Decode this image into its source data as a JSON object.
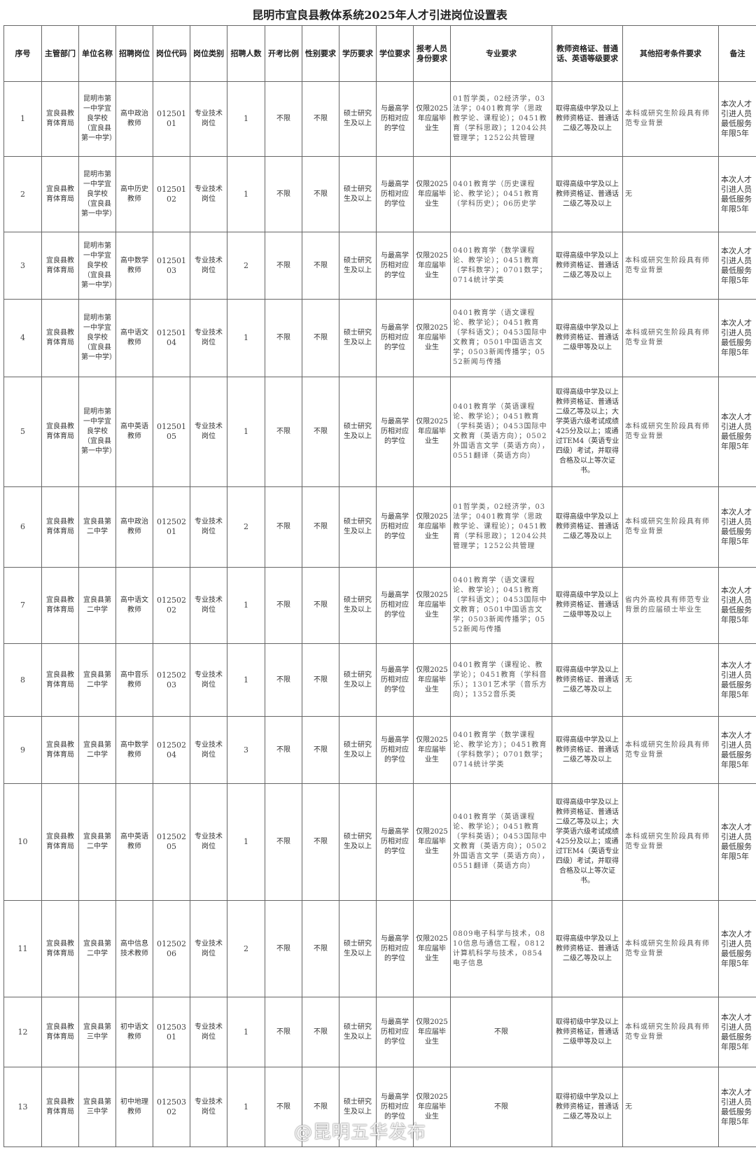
{
  "title": "昆明市宜良县教体系统2025年人才引进岗位设置表",
  "headers": [
    "序号",
    "主管部门",
    "单位名称",
    "招聘岗位",
    "岗位代码",
    "岗位类别",
    "招聘人数",
    "开考比例",
    "性别要求",
    "学历要求",
    "学位要求",
    "报考人员身份要求",
    "专业要求",
    "教师资格证、普通话、英语等级要求",
    "其他招考条件要求",
    "备注"
  ],
  "rows": [
    [
      "1",
      "宜良县教育体育局",
      "昆明市第一中学宜良学校（宜良县第一中学）",
      "高中政治教师",
      "01250101",
      "专业技术岗位",
      "1",
      "不限",
      "不限",
      "硕士研究生及以上",
      "与最高学历相对应的学位",
      "仅限2025年应届毕业生",
      "01哲学类，02经济学，03法学；0401教育学（思政教学论、课程论）；0451教育（学科思政）；1204公共管理学；1252公共管理",
      "取得高级中学及以上教师资格证、普通话二级乙等及以上",
      "本科或研究生阶段具有师范专业背景",
      "本次人才引进人员最低服务年限5年"
    ],
    [
      "2",
      "宜良县教育体育局",
      "昆明市第一中学宜良学校（宜良县第一中学）",
      "高中历史教师",
      "01250102",
      "专业技术岗位",
      "1",
      "不限",
      "不限",
      "硕士研究生及以上",
      "与最高学历相对应的学位",
      "仅限2025年应届毕业生",
      "0401教育学（历史课程论、教学论）；0451教育（学科历史）；06历史学",
      "取得高级中学及以上教师资格证、普通话二级乙等及以上",
      "无",
      "本次人才引进人员最低服务年限5年"
    ],
    [
      "3",
      "宜良县教育体育局",
      "昆明市第一中学宜良学校（宜良县第一中学）",
      "高中数学教师",
      "01250103",
      "专业技术岗位",
      "2",
      "不限",
      "不限",
      "硕士研究生及以上",
      "与最高学历相对应的学位",
      "仅限2025年应届毕业生",
      "0401教育学（数学课程论、教学论）；0451教育（学科数学）；0701数学；0714统计学类",
      "取得高级中学及以上教师资格证、普通话二级乙等及以上",
      "本科或研究生阶段具有师范专业背景",
      "本次人才引进人员最低服务年限5年"
    ],
    [
      "4",
      "宜良县教育体育局",
      "昆明市第一中学宜良学校（宜良县第一中学）",
      "高中语文教师",
      "01250104",
      "专业技术岗位",
      "1",
      "不限",
      "不限",
      "硕士研究生及以上",
      "与最高学历相对应的学位",
      "仅限2025年应届毕业生",
      "0401教育学（语文课程论、教学论）；0451教育（学科语文）；0453国际中文教育；0501中国语言文学；0503新闻传播学；0552新闻与传播",
      "取得高级中学及以上教师资格证、普通话二级甲等及以上",
      "本科或研究生阶段具有师范专业背景",
      "本次人才引进人员最低服务年限5年"
    ],
    [
      "5",
      "宜良县教育体育局",
      "昆明市第一中学宜良学校（宜良县第一中学）",
      "高中英语教师",
      "01250105",
      "专业技术岗位",
      "1",
      "不限",
      "不限",
      "硕士研究生及以上",
      "与最高学历相对应的学位",
      "仅限2025年应届毕业生",
      "0401教育学（英语课程论、教学论）；0451教育（学科英语）；0453国际中文教育（英语方向）；0502外国语言文学（英语方向），0551翻译（英语方向）",
      "取得高级中学及以上教师资格证、普通话二级乙等及以上；大学英语六级考试成绩425分及以上；或通过TEM4（英语专业四级）考试，并取得合格及以上等次证书。",
      "本科或研究生阶段具有师范专业背景",
      "本次人才引进人员最低服务年限5年"
    ],
    [
      "6",
      "宜良县教育体育局",
      "宜良县第二中学",
      "高中政治教师",
      "01250201",
      "专业技术岗位",
      "2",
      "不限",
      "不限",
      "硕士研究生及以上",
      "与最高学历相对应的学位",
      "仅限2025年应届毕业生",
      "01哲学类，02经济学，03法学；0401教育学（思政教学论、课程论）；0451教育（学科思政）；1204公共管理学；1252公共管理",
      "取得高级中学及以上教师资格证、普通话二级乙等及以上",
      "本科或研究生阶段具有师范专业背景",
      "本次人才引进人员最低服务年限5年"
    ],
    [
      "7",
      "宜良县教育体育局",
      "宜良县第二中学",
      "高中语文教师",
      "01250202",
      "专业技术岗位",
      "1",
      "不限",
      "不限",
      "硕士研究生及以上",
      "与最高学历相对应的学位",
      "仅限2025年应届毕业生",
      "0401教育学（语文课程论、教学论）；0451教育（学科语文）；0453国际中文教育；0501中国语言文学；0503新闻传播学；0552新闻与传播",
      "取得高级中学及以上教师资格证、普通话二级甲等及以上",
      "省内外高校具有师范专业背景的应届硕士毕业生",
      "本次人才引进人员最低服务年限5年"
    ],
    [
      "8",
      "宜良县教育体育局",
      "宜良县第二中学",
      "高中音乐教师",
      "01250203",
      "专业技术岗位",
      "1",
      "不限",
      "不限",
      "硕士研究生及以上",
      "与最高学历相对应的学位",
      "仅限2025年应届毕业生",
      "0401教育学（课程论、教学论）；0451教育（学科音乐）；1301艺术学（音乐方向）；1352音乐类",
      "取得高级中学及以上教师资格证、普通话二级乙等及以上",
      "无",
      "本次人才引进人员最低服务年限5年"
    ],
    [
      "9",
      "宜良县教育体育局",
      "宜良县第二中学",
      "高中数学教师",
      "01250204",
      "专业技术岗位",
      "3",
      "不限",
      "不限",
      "硕士研究生及以上",
      "与最高学历相对应的学位",
      "仅限2025年应届毕业生",
      "0401教育学（数学课程论、教学论方）；0451教育（学科数学）；0701数学；0714统计学类",
      "取得高级中学及以上教师资格证、普通话二级乙等及以上",
      "本科或研究生阶段具有师范专业背景",
      "本次人才引进人员最低服务年限5年"
    ],
    [
      "10",
      "宜良县教育体育局",
      "宜良县第二中学",
      "高中英语教师",
      "01250205",
      "专业技术岗位",
      "1",
      "不限",
      "不限",
      "硕士研究生及以上",
      "与最高学历相对应的学位",
      "仅限2025年应届毕业生",
      "0401教育学（英语课程论、教学论）；0451教育（学科英语）；0453国际中文教育（英语方向）；0502外国语言文学（英语方向），0551翻译（英语方向）",
      "取得高级中学及以上教师资格证、普通话二级乙等及以上；大学英语六级考试成绩425分及以上；或通过TEM4（英语专业四级）考试，并取得合格及以上等次证书。",
      "本科或研究生阶段具有师范专业背景",
      "本次人才引进人员最低服务年限5年"
    ],
    [
      "11",
      "宜良县教育体育局",
      "宜良县第二中学",
      "高中信息技术教师",
      "01250206",
      "专业技术岗位",
      "2",
      "不限",
      "不限",
      "硕士研究生及以上",
      "与最高学历相对应的学位",
      "仅限2025年应届毕业生",
      "0809电子科学与技术，0810信息与通信工程，0812计算机科学与技术，0854电子信息",
      "取得高级中学及以上教师资格证、普通话二级乙等及以上",
      "本科或研究生阶段具有师范专业背景",
      "本次人才引进人员最低服务年限5年"
    ],
    [
      "12",
      "宜良县教育体育局",
      "宜良县第三中学",
      "初中语文教师",
      "01250301",
      "专业技术岗位",
      "1",
      "不限",
      "不限",
      "硕士研究生及以上",
      "与最高学历相对应的学位",
      "仅限2025年应届毕业生",
      "不限",
      "取得初级中学及以上教师资格证，普通话二级甲等及以上",
      "本科或研究生阶段具有师范专业背景",
      "本次人才引进人员最低服务年限5年"
    ],
    [
      "13",
      "宜良县教育体育局",
      "宜良县第三中学",
      "初中地理教师",
      "01250302",
      "专业技术岗位",
      "1",
      "不限",
      "不限",
      "硕士研究生及以上",
      "与最高学历相对应的学位",
      "仅限2025年应届毕业生",
      "不限",
      "取得初级中学及以上教师资格证，普通话二级乙等及以上",
      "无",
      "本次人才引进人员最低服务年限5年"
    ]
  ],
  "watermark": "@昆明五华发布"
}
